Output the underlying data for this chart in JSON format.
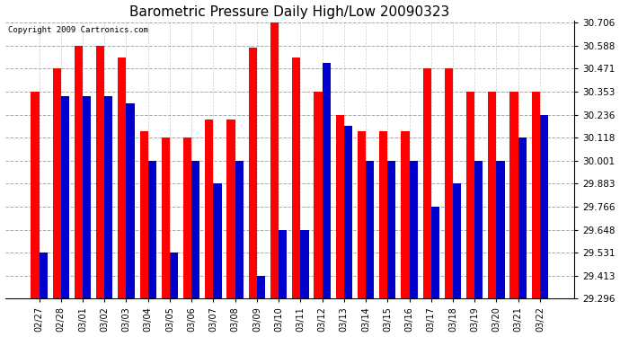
{
  "title": "Barometric Pressure Daily High/Low 20090323",
  "copyright": "Copyright 2009 Cartronics.com",
  "categories": [
    "02/27",
    "02/28",
    "03/01",
    "03/02",
    "03/03",
    "03/04",
    "03/05",
    "03/06",
    "03/07",
    "03/08",
    "03/09",
    "03/10",
    "03/11",
    "03/12",
    "03/13",
    "03/14",
    "03/15",
    "03/16",
    "03/17",
    "03/18",
    "03/19",
    "03/20",
    "03/21",
    "03/22"
  ],
  "highs": [
    30.353,
    30.471,
    30.588,
    30.588,
    30.53,
    30.15,
    30.118,
    30.118,
    30.21,
    30.21,
    30.58,
    30.706,
    30.53,
    30.353,
    30.236,
    30.15,
    30.15,
    30.15,
    30.471,
    30.471,
    30.353,
    30.353,
    30.353,
    30.353
  ],
  "lows": [
    29.531,
    30.33,
    30.33,
    30.33,
    30.295,
    30.001,
    29.531,
    30.001,
    29.883,
    30.001,
    29.413,
    29.648,
    29.648,
    30.5,
    30.18,
    30.001,
    30.001,
    30.001,
    29.766,
    29.883,
    30.001,
    30.001,
    30.118,
    30.236
  ],
  "bar_high_color": "#ff0000",
  "bar_low_color": "#0000cc",
  "bg_color": "#ffffff",
  "plot_bg_color": "#ffffff",
  "grid_color": "#aaaaaa",
  "title_fontsize": 11,
  "yticks": [
    29.296,
    29.413,
    29.531,
    29.648,
    29.766,
    29.883,
    30.001,
    30.118,
    30.236,
    30.353,
    30.471,
    30.588,
    30.706
  ],
  "ymin": 29.296,
  "ymax": 30.706
}
